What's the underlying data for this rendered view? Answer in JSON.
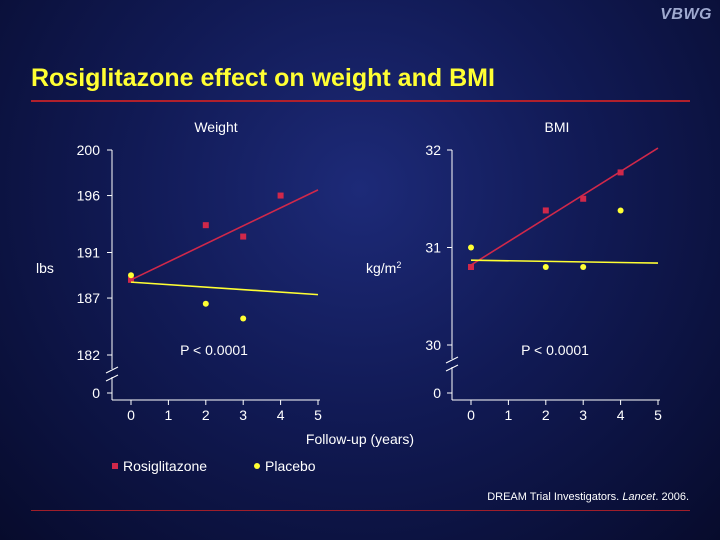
{
  "logo": "VBWG",
  "title": "Rosiglitazone effect on weight and BMI",
  "citation": {
    "authors": "DREAM Trial Investigators.",
    "journal": "Lancet",
    "year": "2006."
  },
  "colors": {
    "rosiglitazone": "#d0284a",
    "placebo": "#ffff33",
    "axis": "#ffffff"
  },
  "chart_data": [
    {
      "type": "scatter",
      "title": "Weight",
      "ylabel": "lbs",
      "xlabel": "Follow-up (years)",
      "x_ticks": [
        "0",
        "1",
        "2",
        "3",
        "4",
        "5"
      ],
      "y_ticks": [
        "200",
        "196",
        "191",
        "187",
        "182",
        "0"
      ],
      "annotation": "P < 0.0001",
      "series": [
        {
          "name": "Rosiglitazone",
          "marker": "square",
          "points": [
            [
              0,
              188.6
            ],
            [
              2,
              193.4
            ],
            [
              3,
              192.4
            ],
            [
              4,
              196.0
            ]
          ],
          "trend": [
            [
              0,
              188.6
            ],
            [
              5,
              196.5
            ]
          ]
        },
        {
          "name": "Placebo",
          "marker": "circle",
          "points": [
            [
              0,
              189.0
            ],
            [
              2,
              186.5
            ],
            [
              3,
              185.2
            ]
          ],
          "trend": [
            [
              0,
              188.4
            ],
            [
              5,
              187.3
            ]
          ]
        }
      ]
    },
    {
      "type": "scatter",
      "title": "BMI",
      "ylabel": "kg/m",
      "ylabel_sup": "2",
      "x_ticks": [
        "0",
        "1",
        "2",
        "3",
        "4",
        "5"
      ],
      "y_ticks": [
        "32",
        "31",
        "30",
        "0"
      ],
      "annotation": "P < 0.0001",
      "series": [
        {
          "name": "Rosiglitazone",
          "marker": "square",
          "points": [
            [
              0,
              30.8
            ],
            [
              2,
              31.38
            ],
            [
              3,
              31.5
            ],
            [
              4,
              31.77
            ]
          ],
          "trend": [
            [
              0,
              30.82
            ],
            [
              5,
              32.02
            ]
          ]
        },
        {
          "name": "Placebo",
          "marker": "circle",
          "points": [
            [
              0,
              31.0
            ],
            [
              2,
              30.8
            ],
            [
              3,
              30.8
            ],
            [
              4,
              31.38
            ]
          ],
          "trend": [
            [
              0,
              30.87
            ],
            [
              5,
              30.84
            ]
          ]
        }
      ]
    }
  ],
  "legend": [
    {
      "label": "Rosiglitazone",
      "marker": "square"
    },
    {
      "label": "Placebo",
      "marker": "circle"
    }
  ]
}
